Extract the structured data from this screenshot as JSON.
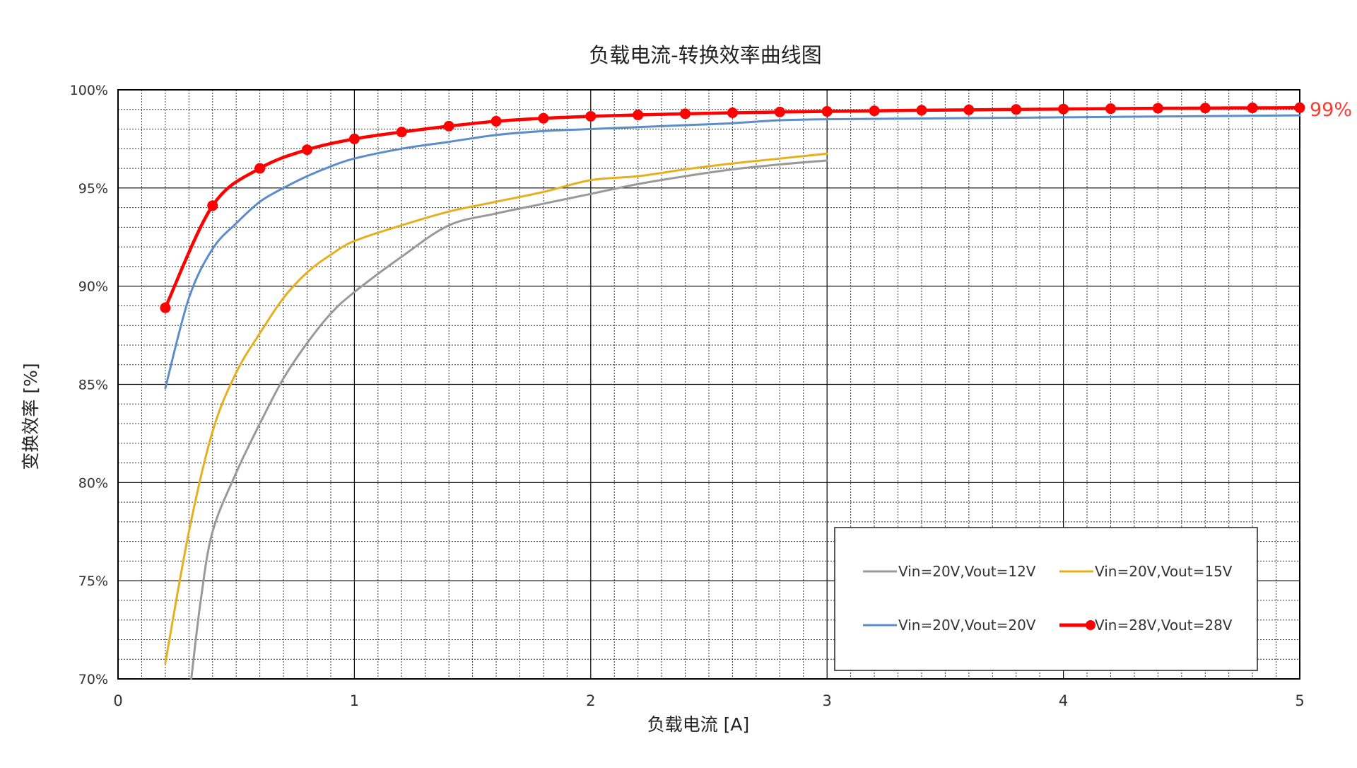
{
  "chart_data": {
    "type": "line",
    "title": "负载电流-转换效率曲线图",
    "xlabel": "负载电流 [A]",
    "ylabel": "变换效率 [%]",
    "xlim": [
      0,
      5
    ],
    "ylim": [
      70,
      100
    ],
    "x_ticks": [
      0,
      1,
      2,
      3,
      4,
      5
    ],
    "x_tick_labels": [
      "0",
      "1",
      "2",
      "3",
      "4",
      "5"
    ],
    "y_ticks": [
      70,
      75,
      80,
      85,
      90,
      95,
      100
    ],
    "y_tick_labels": [
      "70%",
      "75%",
      "80%",
      "85%",
      "90%",
      "95%",
      "100%"
    ],
    "grid": "major and minor, dashed minor",
    "legend_position": "bottom-right",
    "end_annotation": "99%",
    "series": [
      {
        "name": "Vin=20V,Vout=12V",
        "color": "#999999",
        "markers": false,
        "points": [
          [
            0.31,
            70.0
          ],
          [
            0.35,
            74.0
          ],
          [
            0.4,
            77.5
          ],
          [
            0.5,
            80.5
          ],
          [
            0.6,
            83.0
          ],
          [
            0.7,
            85.3
          ],
          [
            0.8,
            87.1
          ],
          [
            0.9,
            88.6
          ],
          [
            1.0,
            89.7
          ],
          [
            1.2,
            91.5
          ],
          [
            1.4,
            93.1
          ],
          [
            1.6,
            93.7
          ],
          [
            1.8,
            94.2
          ],
          [
            2.0,
            94.7
          ],
          [
            2.2,
            95.2
          ],
          [
            2.4,
            95.6
          ],
          [
            2.6,
            95.95
          ],
          [
            2.8,
            96.2
          ],
          [
            3.0,
            96.4
          ]
        ]
      },
      {
        "name": "Vin=20V,Vout=15V",
        "color": "#E6AF1E",
        "markers": false,
        "points": [
          [
            0.2,
            70.8
          ],
          [
            0.3,
            77.5
          ],
          [
            0.4,
            82.6
          ],
          [
            0.5,
            85.6
          ],
          [
            0.6,
            87.6
          ],
          [
            0.7,
            89.4
          ],
          [
            0.8,
            90.7
          ],
          [
            0.9,
            91.6
          ],
          [
            1.0,
            92.3
          ],
          [
            1.2,
            93.1
          ],
          [
            1.4,
            93.8
          ],
          [
            1.6,
            94.3
          ],
          [
            1.8,
            94.8
          ],
          [
            2.0,
            95.4
          ],
          [
            2.2,
            95.6
          ],
          [
            2.4,
            95.95
          ],
          [
            2.6,
            96.25
          ],
          [
            2.8,
            96.5
          ],
          [
            3.0,
            96.75
          ]
        ]
      },
      {
        "name": "Vin=20V,Vout=20V",
        "color": "#5B8DC8",
        "markers": false,
        "points": [
          [
            0.2,
            84.8
          ],
          [
            0.3,
            89.4
          ],
          [
            0.4,
            91.9
          ],
          [
            0.5,
            93.2
          ],
          [
            0.6,
            94.3
          ],
          [
            0.7,
            95.0
          ],
          [
            0.8,
            95.6
          ],
          [
            0.9,
            96.1
          ],
          [
            1.0,
            96.5
          ],
          [
            1.2,
            97.0
          ],
          [
            1.4,
            97.35
          ],
          [
            1.6,
            97.7
          ],
          [
            1.8,
            97.9
          ],
          [
            2.0,
            98.0
          ],
          [
            2.2,
            98.1
          ],
          [
            2.4,
            98.2
          ],
          [
            2.6,
            98.3
          ],
          [
            2.8,
            98.45
          ],
          [
            3.0,
            98.5
          ],
          [
            3.5,
            98.55
          ],
          [
            4.0,
            98.6
          ],
          [
            4.5,
            98.65
          ],
          [
            5.0,
            98.7
          ]
        ]
      },
      {
        "name": "Vin=28V,Vout=28V",
        "color": "#FF0000",
        "markers": true,
        "points": [
          [
            0.2,
            88.9
          ],
          [
            0.4,
            94.1
          ],
          [
            0.6,
            96.0
          ],
          [
            0.8,
            96.95
          ],
          [
            1.0,
            97.5
          ],
          [
            1.2,
            97.85
          ],
          [
            1.4,
            98.15
          ],
          [
            1.6,
            98.4
          ],
          [
            1.8,
            98.55
          ],
          [
            2.0,
            98.65
          ],
          [
            2.2,
            98.72
          ],
          [
            2.4,
            98.78
          ],
          [
            2.6,
            98.83
          ],
          [
            2.8,
            98.87
          ],
          [
            3.0,
            98.9
          ],
          [
            3.2,
            98.93
          ],
          [
            3.4,
            98.96
          ],
          [
            3.6,
            98.98
          ],
          [
            3.8,
            99.0
          ],
          [
            4.0,
            99.02
          ],
          [
            4.2,
            99.04
          ],
          [
            4.4,
            99.06
          ],
          [
            4.6,
            99.07
          ],
          [
            4.8,
            99.08
          ],
          [
            5.0,
            99.09
          ]
        ]
      }
    ]
  }
}
